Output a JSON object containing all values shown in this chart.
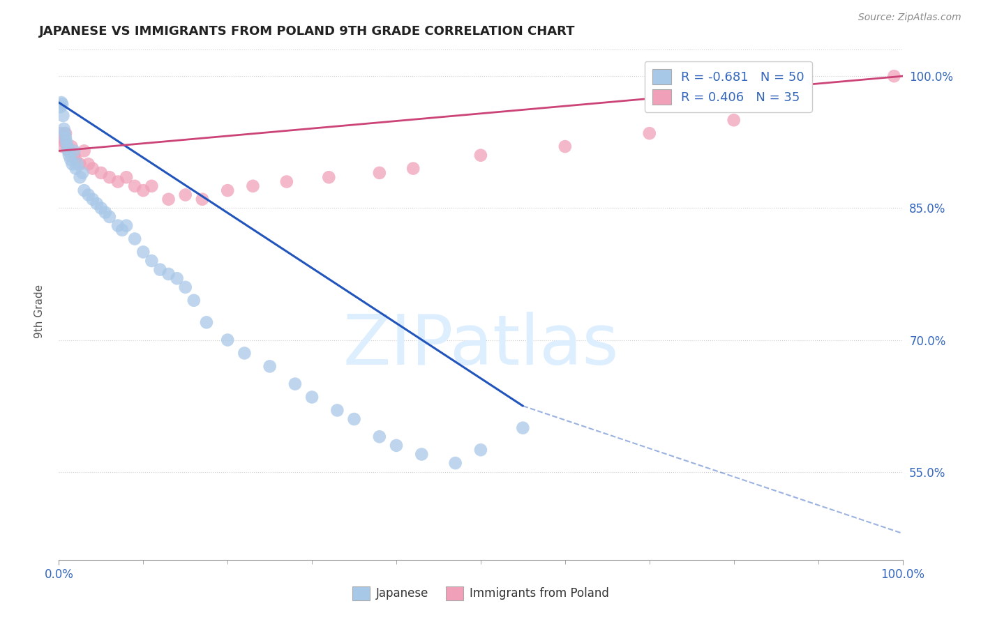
{
  "title": "JAPANESE VS IMMIGRANTS FROM POLAND 9TH GRADE CORRELATION CHART",
  "source": "Source: ZipAtlas.com",
  "ylabel": "9th Grade",
  "xlim": [
    0,
    100
  ],
  "ylim": [
    45,
    103
  ],
  "yticks": [
    55,
    70,
    85,
    100
  ],
  "ytick_labels": [
    "55.0%",
    "70.0%",
    "85.0%",
    "100.0%"
  ],
  "xtick_labels": [
    "0.0%",
    "100.0%"
  ],
  "background_color": "#ffffff",
  "grid_color": "#cccccc",
  "blue_color": "#a8c8e8",
  "pink_color": "#f0a0b8",
  "blue_line_color": "#2255bb",
  "pink_line_color": "#cc4477",
  "watermark_color": "#ddeeff",
  "legend_r_blue": "-0.681",
  "legend_n_blue": "50",
  "legend_r_pink": "0.406",
  "legend_n_pink": "35",
  "blue_scatter_x": [
    0.2,
    0.3,
    0.4,
    0.5,
    0.6,
    0.7,
    0.8,
    0.9,
    1.0,
    1.1,
    1.2,
    1.4,
    1.6,
    1.8,
    2.0,
    2.2,
    2.5,
    2.8,
    3.0,
    3.5,
    4.0,
    4.5,
    5.0,
    5.5,
    6.0,
    7.0,
    7.5,
    8.0,
    9.0,
    10.0,
    11.0,
    12.0,
    13.0,
    14.0,
    15.0,
    16.0,
    17.5,
    20.0,
    22.0,
    25.0,
    28.0,
    30.0,
    33.0,
    35.0,
    38.0,
    40.0,
    43.0,
    47.0,
    50.0,
    55.0
  ],
  "blue_scatter_y": [
    96.5,
    97.0,
    96.8,
    95.5,
    94.0,
    93.5,
    93.0,
    92.5,
    92.0,
    91.5,
    91.0,
    90.5,
    90.0,
    91.5,
    89.5,
    90.0,
    88.5,
    89.0,
    87.0,
    86.5,
    86.0,
    85.5,
    85.0,
    84.5,
    84.0,
    83.0,
    82.5,
    83.0,
    81.5,
    80.0,
    79.0,
    78.0,
    77.5,
    77.0,
    76.0,
    74.5,
    72.0,
    70.0,
    68.5,
    67.0,
    65.0,
    63.5,
    62.0,
    61.0,
    59.0,
    58.0,
    57.0,
    56.0,
    57.5,
    60.0
  ],
  "pink_scatter_x": [
    0.2,
    0.4,
    0.5,
    0.7,
    0.8,
    1.0,
    1.2,
    1.5,
    1.8,
    2.0,
    2.5,
    3.0,
    3.5,
    4.0,
    5.0,
    6.0,
    7.0,
    8.0,
    9.0,
    10.0,
    11.0,
    13.0,
    15.0,
    17.0,
    20.0,
    23.0,
    27.0,
    32.0,
    38.0,
    42.0,
    50.0,
    60.0,
    70.0,
    80.0,
    99.0
  ],
  "pink_scatter_y": [
    93.5,
    92.0,
    93.0,
    92.5,
    93.5,
    92.0,
    91.5,
    92.0,
    91.0,
    90.5,
    90.0,
    91.5,
    90.0,
    89.5,
    89.0,
    88.5,
    88.0,
    88.5,
    87.5,
    87.0,
    87.5,
    86.0,
    86.5,
    86.0,
    87.0,
    87.5,
    88.0,
    88.5,
    89.0,
    89.5,
    91.0,
    92.0,
    93.5,
    95.0,
    100.0
  ],
  "blue_line_start_x": 0,
  "blue_line_start_y": 97.0,
  "blue_line_solid_end_x": 55,
  "blue_line_solid_end_y": 62.5,
  "blue_line_dashed_end_x": 100,
  "blue_line_dashed_end_y": 48.0,
  "pink_line_start_x": 0,
  "pink_line_start_y": 91.5,
  "pink_line_end_x": 100,
  "pink_line_end_y": 100.0
}
